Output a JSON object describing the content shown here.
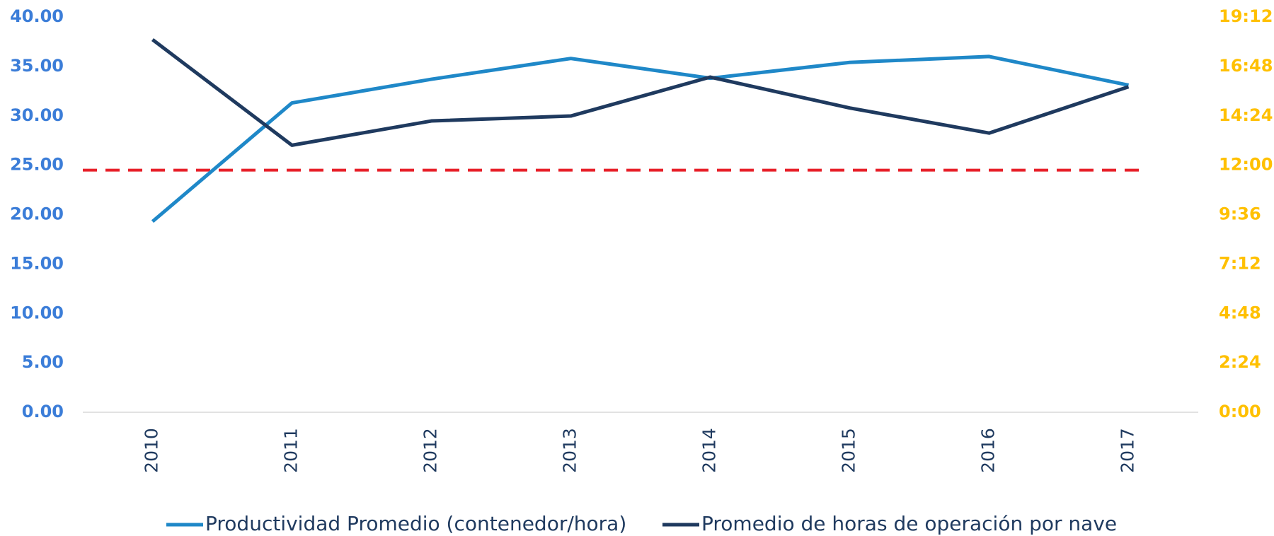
{
  "chart_data": {
    "type": "line",
    "categories": [
      "2010",
      "2011",
      "2012",
      "2013",
      "2014",
      "2015",
      "2016",
      "2017"
    ],
    "series": [
      {
        "name": "Productividad Promedio (contenedor/hora)",
        "color": "#1f88c8",
        "values": [
          19.3,
          31.3,
          33.7,
          35.8,
          33.8,
          35.4,
          36.0,
          33.1
        ]
      },
      {
        "name": "Promedio de horas de operación por nave",
        "color": "#1f3a5f",
        "axis": "y2",
        "values": [
          18.1,
          12.97,
          14.15,
          14.39,
          16.28,
          14.78,
          13.56,
          15.81
        ]
      }
    ],
    "reference_line": {
      "value": 24.5,
      "color": "#e8202a",
      "dashed": true
    },
    "ylim": [
      0,
      40
    ],
    "yticks": [
      {
        "value": 0,
        "label": "0.00"
      },
      {
        "value": 5,
        "label": "5.00"
      },
      {
        "value": 10,
        "label": "10.00"
      },
      {
        "value": 15,
        "label": "15.00"
      },
      {
        "value": 20,
        "label": "20.00"
      },
      {
        "value": 25,
        "label": "25.00"
      },
      {
        "value": 30,
        "label": "30.00"
      },
      {
        "value": 35,
        "label": "35.00"
      },
      {
        "value": 40,
        "label": "40.00"
      }
    ],
    "y2lim": [
      0,
      19.2
    ],
    "y2ticks": [
      {
        "value": 0,
        "label": "0:00"
      },
      {
        "value": 2.4,
        "label": "2:24"
      },
      {
        "value": 4.8,
        "label": "4:48"
      },
      {
        "value": 7.2,
        "label": "7:12"
      },
      {
        "value": 9.6,
        "label": "9:36"
      },
      {
        "value": 12,
        "label": "12:00"
      },
      {
        "value": 14.4,
        "label": "14:24"
      },
      {
        "value": 16.8,
        "label": "16:48"
      },
      {
        "value": 19.2,
        "label": "19:12"
      }
    ],
    "ytick_color": "#3b7dd8",
    "y2tick_color": "#ffc000",
    "legend": "bottom",
    "grid": false
  }
}
